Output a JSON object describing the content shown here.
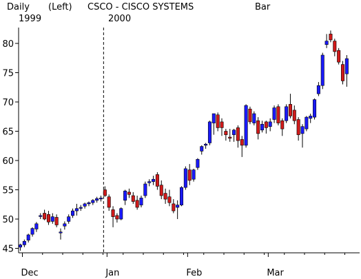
{
  "header": {
    "period": "Daily",
    "scale": "(Left)",
    "symbol": "CSCO - CISCO SYSTEMS",
    "style": "Bar",
    "year_start": "1999",
    "year_divider": "2000"
  },
  "chart_data": {
    "type": "candlestick",
    "title": "CSCO - CISCO SYSTEMS",
    "xlabel": "",
    "ylabel": "",
    "ylim": [
      44.5,
      83
    ],
    "yticks": [
      45,
      50,
      55,
      60,
      65,
      70,
      75,
      80
    ],
    "ytick_labels": [
      "45",
      "50",
      "55",
      "60",
      "65",
      "70",
      "75",
      "80"
    ],
    "x_month_labels": [
      {
        "label": "Dec",
        "index": 0
      },
      {
        "label": "Jan",
        "index": 21
      },
      {
        "label": "Feb",
        "index": 41
      },
      {
        "label": "Mar",
        "index": 61
      }
    ],
    "year_divider_index": 21,
    "grid": false,
    "legend": "none",
    "colors": {
      "up": "#1a1aff",
      "down": "#d11a1a",
      "wick": "#000000",
      "axis": "#000000",
      "divider": "#000000"
    },
    "candles": [
      [
        45.2,
        45.8,
        44.6,
        45.6
      ],
      [
        45.6,
        46.5,
        45.2,
        46.2
      ],
      [
        46.4,
        47.5,
        46.0,
        47.3
      ],
      [
        47.4,
        48.6,
        47.0,
        48.4
      ],
      [
        48.3,
        49.5,
        47.8,
        49.2
      ],
      [
        50.5,
        51.0,
        50.0,
        50.6
      ],
      [
        51.0,
        51.6,
        49.8,
        50.0
      ],
      [
        50.8,
        51.4,
        49.0,
        49.5
      ],
      [
        49.6,
        51.0,
        49.2,
        50.4
      ],
      [
        50.3,
        50.8,
        48.6,
        49.0
      ],
      [
        47.8,
        48.4,
        46.5,
        47.8
      ],
      [
        48.8,
        49.6,
        48.2,
        49.2
      ],
      [
        49.6,
        50.8,
        49.2,
        50.4
      ],
      [
        50.6,
        51.8,
        50.2,
        51.4
      ],
      [
        51.4,
        52.6,
        50.6,
        51.8
      ],
      [
        52.0,
        52.4,
        51.4,
        52.0
      ],
      [
        52.2,
        52.8,
        51.8,
        52.6
      ],
      [
        52.6,
        53.0,
        52.2,
        52.8
      ],
      [
        52.8,
        53.4,
        52.4,
        53.2
      ],
      [
        53.2,
        53.8,
        52.8,
        53.5
      ],
      [
        53.5,
        54.0,
        53.0,
        53.6
      ],
      [
        55.0,
        55.6,
        53.8,
        54.0
      ],
      [
        53.8,
        54.2,
        51.4,
        52.0
      ],
      [
        51.6,
        52.2,
        48.6,
        50.4
      ],
      [
        50.6,
        51.0,
        49.4,
        50.0
      ],
      [
        50.0,
        52.0,
        49.8,
        51.8
      ],
      [
        53.2,
        55.0,
        52.4,
        54.8
      ],
      [
        54.6,
        55.2,
        53.6,
        54.2
      ],
      [
        54.0,
        54.6,
        52.6,
        53.0
      ],
      [
        53.2,
        54.0,
        51.6,
        52.0
      ],
      [
        52.4,
        54.0,
        52.0,
        53.6
      ],
      [
        54.0,
        56.4,
        53.6,
        56.0
      ],
      [
        56.2,
        56.8,
        55.6,
        56.4
      ],
      [
        56.4,
        57.4,
        55.8,
        56.8
      ],
      [
        57.6,
        58.0,
        55.0,
        55.6
      ],
      [
        55.8,
        56.6,
        53.4,
        54.0
      ],
      [
        54.4,
        55.2,
        52.6,
        53.4
      ],
      [
        53.8,
        55.0,
        52.2,
        52.8
      ],
      [
        52.6,
        53.4,
        51.0,
        51.4
      ],
      [
        52.0,
        53.2,
        50.0,
        52.4
      ],
      [
        52.4,
        55.6,
        52.2,
        55.4
      ],
      [
        55.4,
        59.0,
        55.0,
        58.6
      ],
      [
        58.4,
        59.4,
        55.8,
        56.6
      ],
      [
        56.8,
        58.6,
        56.4,
        58.4
      ],
      [
        58.8,
        60.4,
        58.4,
        60.2
      ],
      [
        61.6,
        62.6,
        61.0,
        62.4
      ],
      [
        62.6,
        63.0,
        62.0,
        62.8
      ],
      [
        63.0,
        66.8,
        62.6,
        66.6
      ],
      [
        66.4,
        68.0,
        64.4,
        68.0
      ],
      [
        67.8,
        68.2,
        65.0,
        65.6
      ],
      [
        66.6,
        67.2,
        64.2,
        65.6
      ],
      [
        65.0,
        65.4,
        63.4,
        64.4
      ],
      [
        64.0,
        65.4,
        63.2,
        63.8
      ],
      [
        64.4,
        65.4,
        63.2,
        65.2
      ],
      [
        65.6,
        66.0,
        62.2,
        63.4
      ],
      [
        63.6,
        64.2,
        60.6,
        62.6
      ],
      [
        62.6,
        69.6,
        62.2,
        69.4
      ],
      [
        68.8,
        69.2,
        66.2,
        66.6
      ],
      [
        66.4,
        68.4,
        66.0,
        68.0
      ],
      [
        66.8,
        67.4,
        63.6,
        64.6
      ],
      [
        65.2,
        66.8,
        64.8,
        66.2
      ],
      [
        66.6,
        66.8,
        64.6,
        65.6
      ],
      [
        65.8,
        67.2,
        65.0,
        66.6
      ],
      [
        67.0,
        69.4,
        66.4,
        69.0
      ],
      [
        69.2,
        69.6,
        66.0,
        66.4
      ],
      [
        66.8,
        67.2,
        64.2,
        65.4
      ],
      [
        66.8,
        69.6,
        66.4,
        69.2
      ],
      [
        69.6,
        71.4,
        67.2,
        67.6
      ],
      [
        68.6,
        69.4,
        66.2,
        66.8
      ],
      [
        67.0,
        67.4,
        63.4,
        64.4
      ],
      [
        64.6,
        66.2,
        62.2,
        65.8
      ],
      [
        65.4,
        67.6,
        65.0,
        67.4
      ],
      [
        67.2,
        68.0,
        66.4,
        67.6
      ],
      [
        67.4,
        70.6,
        67.0,
        70.4
      ],
      [
        71.4,
        73.4,
        71.0,
        72.8
      ],
      [
        72.8,
        78.4,
        72.2,
        78.0
      ],
      [
        79.8,
        81.6,
        79.2,
        80.4
      ],
      [
        81.6,
        82.2,
        80.2,
        80.6
      ],
      [
        80.4,
        80.8,
        77.8,
        78.6
      ],
      [
        78.8,
        79.2,
        76.4,
        76.8
      ],
      [
        76.4,
        77.0,
        73.0,
        73.6
      ],
      [
        74.8,
        78.0,
        72.6,
        77.4
      ]
    ]
  }
}
